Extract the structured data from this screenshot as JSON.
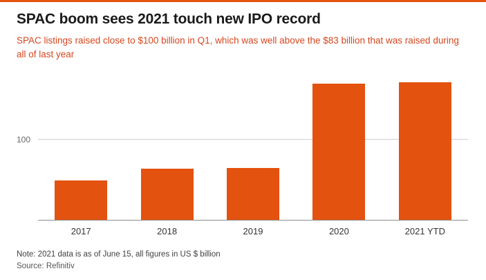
{
  "page": {
    "title": "SPAC boom sees 2021 touch new IPO record",
    "subtitle": "SPAC listings raised close to $100 billion in Q1, which was well above the $83 billion that was raised during all of last year",
    "note": "Note: 2021 data is as of June 15, all figures in US $ billion",
    "source": "Source: Refinitiv"
  },
  "colors": {
    "bar": "#e3520f",
    "subtitle": "#d6461e",
    "accent_rule": "#e3520f"
  },
  "chart_data": {
    "type": "bar",
    "title": "SPAC boom sees 2021 touch new IPO record",
    "subtitle": "SPAC listings raised close to $100 billion in Q1, which was well above the $83 billion that was raised during all of last year",
    "categories": [
      "2017",
      "2018",
      "2019",
      "2020",
      "2021 YTD"
    ],
    "values": [
      49,
      64,
      65,
      170,
      172
    ],
    "xlabel": "",
    "ylabel": "",
    "unit": "US $ billion",
    "yticks": [
      100
    ],
    "ylim": [
      0,
      180
    ],
    "grid": "single horizontal gridline at 100, drawn behind bars",
    "legend": "none",
    "note": "Note: 2021 data is as of June 15, all figures in US $ billion",
    "source": "Source: Refinitiv"
  }
}
